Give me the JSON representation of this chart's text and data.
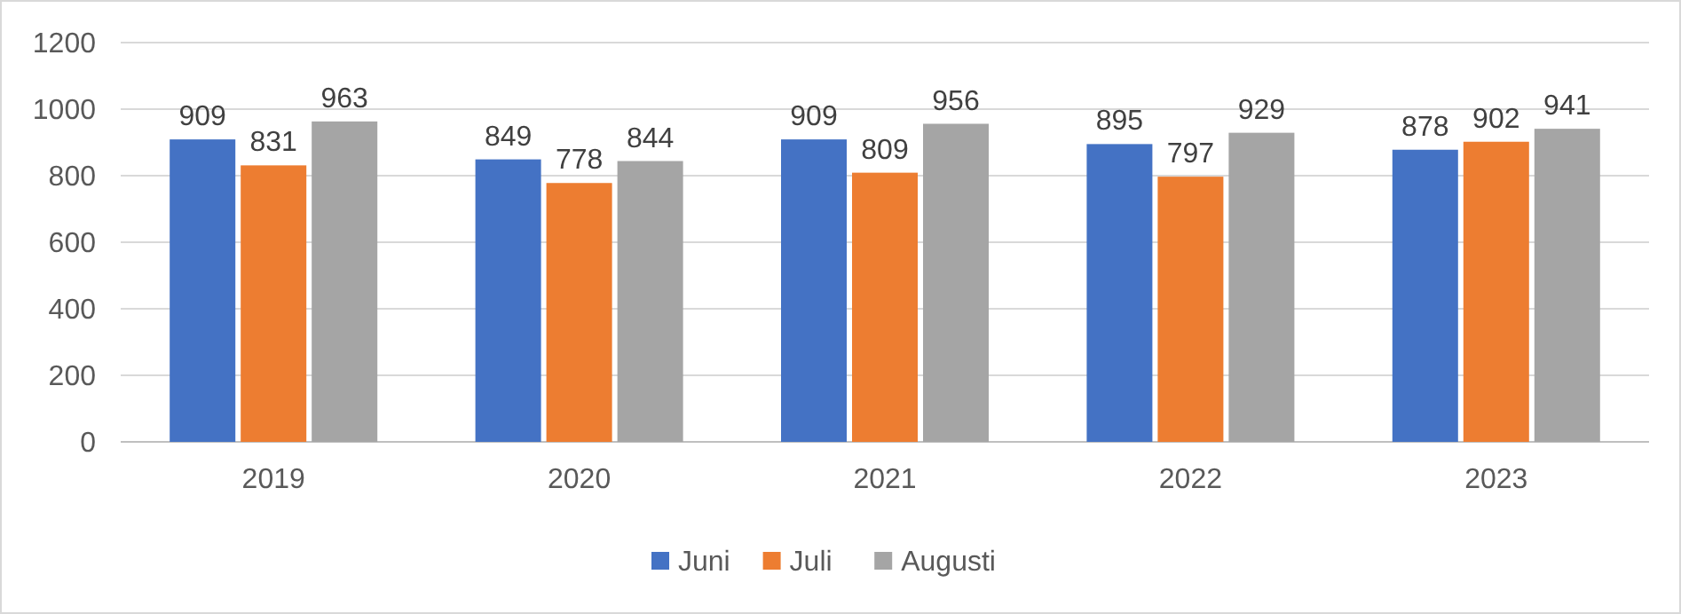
{
  "chart_data": {
    "type": "bar",
    "categories": [
      "2019",
      "2020",
      "2021",
      "2022",
      "2023"
    ],
    "series": [
      {
        "name": "Juni",
        "color": "#4472c4",
        "values": [
          909,
          849,
          909,
          895,
          878
        ]
      },
      {
        "name": "Juli",
        "color": "#ed7d31",
        "values": [
          831,
          778,
          809,
          797,
          902
        ]
      },
      {
        "name": "Augusti",
        "color": "#a5a5a5",
        "values": [
          963,
          844,
          956,
          929,
          941
        ]
      }
    ],
    "ylim": [
      0,
      1200
    ],
    "yticks": [
      0,
      200,
      400,
      600,
      800,
      1000,
      1200
    ],
    "grid": "y",
    "legend": "bottom",
    "data_labels": true
  }
}
